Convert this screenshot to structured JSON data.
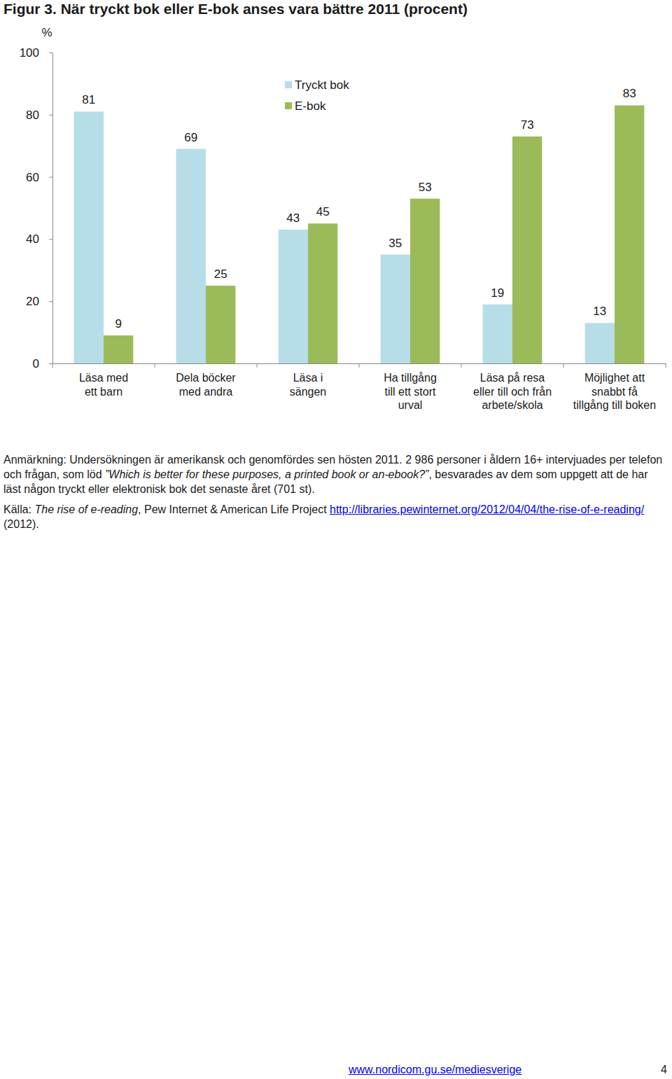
{
  "chart_data": {
    "type": "bar",
    "title": "Figur 3. När tryckt bok eller E-bok anses vara bättre 2011 (procent)",
    "ylabel": "%",
    "categories": [
      "Läsa med\nett barn",
      "Dela böcker\nmed andra",
      "Läsa i\nsängen",
      "Ha tillgång\ntill ett stort\nurval",
      "Läsa på resa\neller till och från\narbete/skola",
      "Möjlighet att\nsnabbt få\ntillgång till boken"
    ],
    "series": [
      {
        "name": "Tryckt bok",
        "color": "#b7dde8",
        "values": [
          81,
          69,
          43,
          35,
          19,
          13
        ]
      },
      {
        "name": "E-bok",
        "color": "#9bbb59",
        "values": [
          9,
          25,
          45,
          53,
          73,
          83
        ]
      }
    ],
    "ylim": [
      0,
      100
    ],
    "yticks": [
      0,
      20,
      40,
      60,
      80,
      100
    ],
    "grid": false,
    "legend": "top",
    "data_labels": true
  },
  "page": {
    "note": [
      "Anmärkning: Undersökningen är amerikansk och genomfördes sen hösten 2011. 2 986 personer i åldern 16+ intervjuades per telefon och frågan, som löd ",
      "”Which is better for these purposes, a printed book or an-ebook?”",
      ", besvarades av dem som uppgett att de har läst någon tryckt eller elektronisk bok det senaste året (701 st)."
    ],
    "source": {
      "prefix": "Källa: ",
      "title": "The rise of e-reading",
      "publisher": ", Pew Internet & American Life Project ",
      "url": "http://libraries.pewinternet.org/2012/04/04/the-rise-of-e-reading/",
      "suffix": " (2012)."
    },
    "footer_url": "www.nordicom.gu.se/mediesverige",
    "page_number": 4
  }
}
